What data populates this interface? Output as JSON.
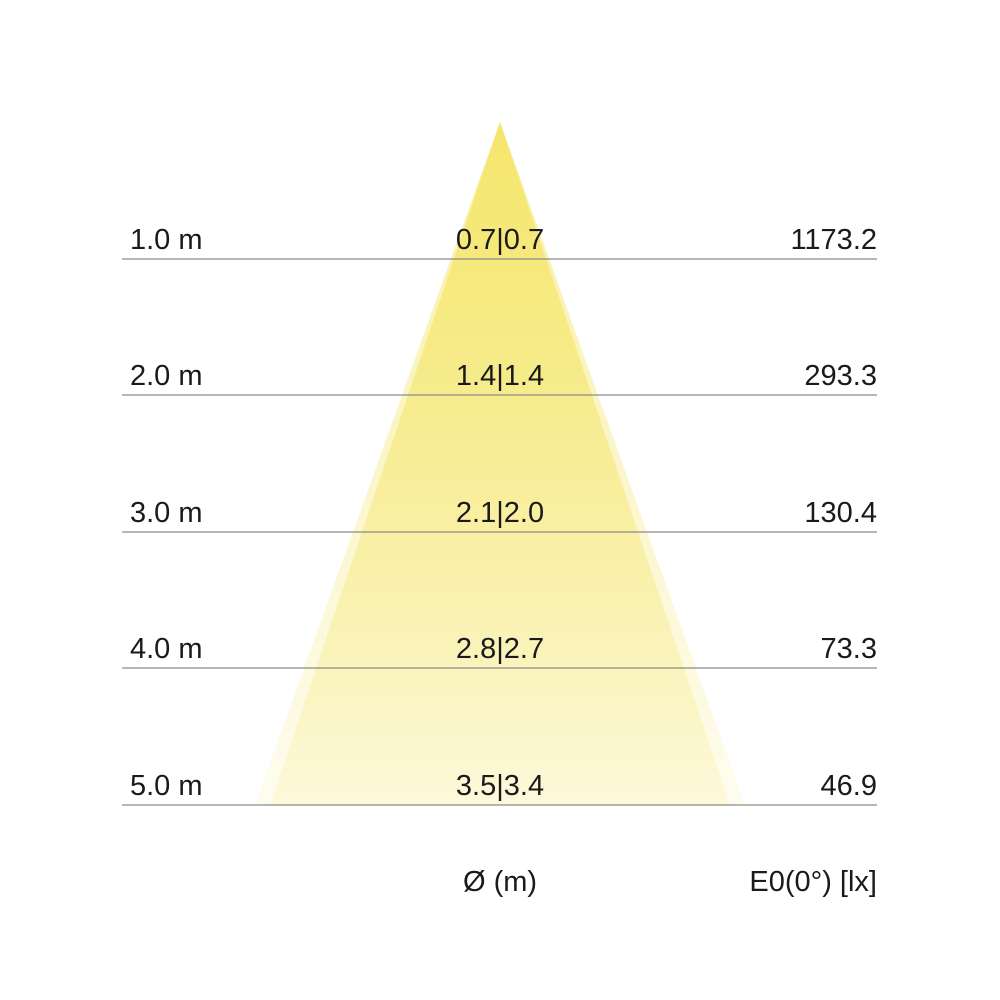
{
  "cone_color": "#f3e35a",
  "rows": [
    {
      "distance": "1.0 m",
      "diameter": "0.7|0.7",
      "illuminance": "1173.2"
    },
    {
      "distance": "2.0 m",
      "diameter": "1.4|1.4",
      "illuminance": "293.3"
    },
    {
      "distance": "3.0 m",
      "diameter": "2.1|2.0",
      "illuminance": "130.4"
    },
    {
      "distance": "4.0 m",
      "diameter": "2.8|2.7",
      "illuminance": "73.3"
    },
    {
      "distance": "5.0 m",
      "diameter": "3.5|3.4",
      "illuminance": "46.9"
    }
  ],
  "footer": {
    "diameter_label": "Ø (m)",
    "illuminance_label": "E0(0°) [lx]"
  }
}
